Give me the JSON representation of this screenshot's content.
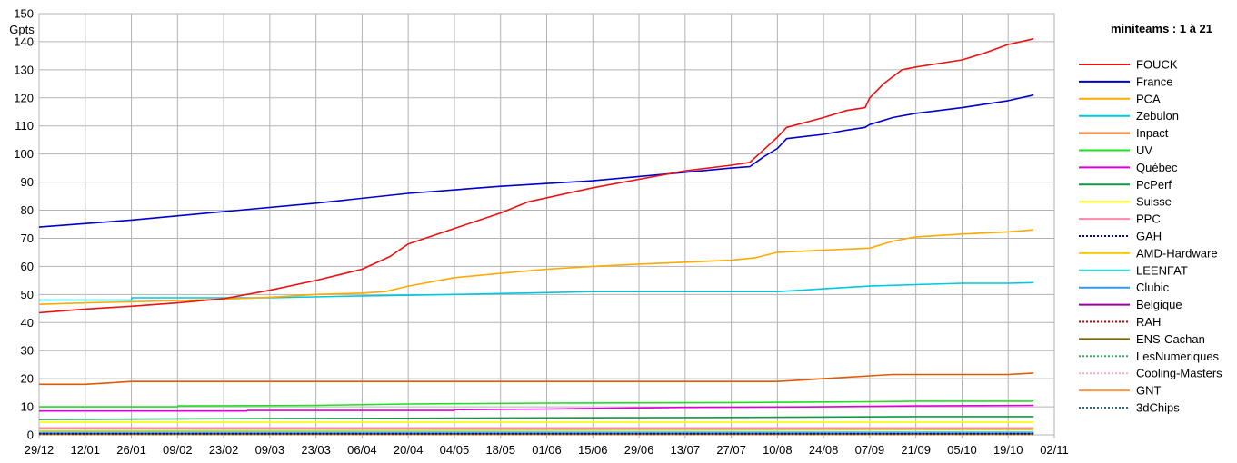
{
  "chart_data": {
    "type": "line",
    "title": "",
    "xlabel": "",
    "ylabel": "Gpts",
    "ylim": [
      0,
      150
    ],
    "ytick_step": 10,
    "grid": true,
    "legend_title": "miniteams : 1 à 21",
    "legend_position": "right",
    "x_dates": [
      "29/12",
      "12/01",
      "26/01",
      "09/02",
      "23/02",
      "09/03",
      "23/03",
      "06/04",
      "20/04",
      "04/05",
      "18/05",
      "01/06",
      "15/06",
      "29/06",
      "13/07",
      "27/07",
      "10/08",
      "24/08",
      "07/09",
      "21/09",
      "05/10",
      "19/10",
      "02/11"
    ],
    "x_data_end": 21.55,
    "series": [
      {
        "name": "FOUCK",
        "color": "#ee1111",
        "dash": "solid",
        "points": [
          [
            0,
            43.5
          ],
          [
            1,
            44.8
          ],
          [
            2,
            45.8
          ],
          [
            3,
            47.0
          ],
          [
            4,
            48.5
          ],
          [
            5,
            51.5
          ],
          [
            6,
            55.0
          ],
          [
            7,
            59.0
          ],
          [
            7.6,
            63.5
          ],
          [
            8,
            68.0
          ],
          [
            9,
            73.5
          ],
          [
            10,
            79.0
          ],
          [
            10.6,
            83.0
          ],
          [
            12,
            88.0
          ],
          [
            13,
            91.0
          ],
          [
            14,
            94.0
          ],
          [
            15,
            96.0
          ],
          [
            15.4,
            97.0
          ],
          [
            15.6,
            100.0
          ],
          [
            16,
            106.0
          ],
          [
            16.2,
            109.5
          ],
          [
            17,
            113.0
          ],
          [
            17.5,
            115.5
          ],
          [
            17.9,
            116.5
          ],
          [
            18,
            120.0
          ],
          [
            18.3,
            125.0
          ],
          [
            18.7,
            130.0
          ],
          [
            19,
            131.0
          ],
          [
            20,
            133.5
          ],
          [
            20.5,
            136.0
          ],
          [
            21,
            139.0
          ],
          [
            21.55,
            141.0
          ]
        ]
      },
      {
        "name": "France",
        "color": "#0000cc",
        "dash": "solid",
        "points": [
          [
            0,
            74.0
          ],
          [
            2,
            76.5
          ],
          [
            4,
            79.5
          ],
          [
            6,
            82.5
          ],
          [
            8,
            86.0
          ],
          [
            10,
            88.5
          ],
          [
            12,
            90.5
          ],
          [
            14,
            93.5
          ],
          [
            15,
            95.0
          ],
          [
            15.4,
            95.5
          ],
          [
            15.7,
            99.0
          ],
          [
            16,
            102.0
          ],
          [
            16.2,
            105.5
          ],
          [
            17,
            107.0
          ],
          [
            17.5,
            108.5
          ],
          [
            17.9,
            109.5
          ],
          [
            18,
            110.5
          ],
          [
            18.5,
            113.0
          ],
          [
            19,
            114.5
          ],
          [
            20,
            116.5
          ],
          [
            21,
            119.0
          ],
          [
            21.55,
            121.0
          ]
        ]
      },
      {
        "name": "PCA",
        "color": "#ffaa00",
        "dash": "solid",
        "points": [
          [
            0,
            46.5
          ],
          [
            1,
            47.0
          ],
          [
            3,
            47.8
          ],
          [
            4,
            48.3
          ],
          [
            5,
            49.0
          ],
          [
            6,
            50.0
          ],
          [
            7,
            50.5
          ],
          [
            7.5,
            51.0
          ],
          [
            8,
            53.0
          ],
          [
            9,
            56.0
          ],
          [
            10,
            57.5
          ],
          [
            11,
            59.0
          ],
          [
            12,
            60.0
          ],
          [
            13,
            60.8
          ],
          [
            14,
            61.5
          ],
          [
            15,
            62.2
          ],
          [
            15.5,
            63.0
          ],
          [
            16,
            65.0
          ],
          [
            17,
            65.8
          ],
          [
            18,
            66.5
          ],
          [
            18.5,
            69.0
          ],
          [
            19,
            70.5
          ],
          [
            20,
            71.5
          ],
          [
            21,
            72.3
          ],
          [
            21.55,
            73.0
          ]
        ]
      },
      {
        "name": "Zebulon",
        "color": "#00c8e0",
        "dash": "solid",
        "points": [
          [
            0,
            48.0
          ],
          [
            2,
            48.0
          ],
          [
            2.01,
            48.8
          ],
          [
            5,
            48.8
          ],
          [
            7,
            49.5
          ],
          [
            9,
            50.0
          ],
          [
            10.5,
            50.5
          ],
          [
            12,
            51.0
          ],
          [
            16,
            51.0
          ],
          [
            16.5,
            51.5
          ],
          [
            17,
            52.0
          ],
          [
            18,
            53.0
          ],
          [
            19,
            53.5
          ],
          [
            20,
            54.0
          ],
          [
            21,
            54.0
          ],
          [
            21.55,
            54.2
          ]
        ]
      },
      {
        "name": "Inpact",
        "color": "#e05a00",
        "dash": "solid",
        "points": [
          [
            0,
            18.0
          ],
          [
            1,
            18.0
          ],
          [
            1.5,
            18.5
          ],
          [
            2,
            19.0
          ],
          [
            16,
            19.0
          ],
          [
            16.5,
            19.5
          ],
          [
            17,
            20.0
          ],
          [
            18,
            21.0
          ],
          [
            18.5,
            21.5
          ],
          [
            21,
            21.5
          ],
          [
            21.55,
            22.0
          ]
        ]
      },
      {
        "name": "UV",
        "color": "#22dd22",
        "dash": "solid",
        "points": [
          [
            0,
            10.0
          ],
          [
            3,
            10.0
          ],
          [
            3.01,
            10.3
          ],
          [
            6,
            10.5
          ],
          [
            8,
            11.0
          ],
          [
            11,
            11.3
          ],
          [
            15,
            11.5
          ],
          [
            18,
            11.8
          ],
          [
            19,
            12.0
          ],
          [
            21.55,
            12.0
          ]
        ]
      },
      {
        "name": "Québec",
        "color": "#dd00dd",
        "dash": "solid",
        "points": [
          [
            0,
            8.5
          ],
          [
            4.5,
            8.5
          ],
          [
            4.51,
            8.7
          ],
          [
            9,
            8.7
          ],
          [
            9.01,
            9.0
          ],
          [
            11,
            9.2
          ],
          [
            14,
            9.8
          ],
          [
            17,
            10.0
          ],
          [
            19,
            10.3
          ],
          [
            21.55,
            10.5
          ]
        ]
      },
      {
        "name": "PcPerf",
        "color": "#119944",
        "dash": "solid",
        "points": [
          [
            0,
            5.5
          ],
          [
            5,
            5.8
          ],
          [
            10,
            6.0
          ],
          [
            15,
            6.2
          ],
          [
            19,
            6.5
          ],
          [
            21.55,
            6.5
          ]
        ]
      },
      {
        "name": "Suisse",
        "color": "#ffff00",
        "dash": "solid",
        "points": [
          [
            0,
            4.5
          ],
          [
            21.55,
            4.5
          ]
        ]
      },
      {
        "name": "PPC",
        "color": "#ff88aa",
        "dash": "solid",
        "points": [
          [
            0,
            2.5
          ],
          [
            21.55,
            2.5
          ]
        ]
      },
      {
        "name": "GAH",
        "color": "#0000cc",
        "dash": "dotted",
        "points": [
          [
            0,
            0.5
          ],
          [
            21.55,
            0.5
          ]
        ]
      },
      {
        "name": "AMD-Hardware",
        "color": "#ffcc00",
        "dash": "solid",
        "points": [
          [
            0,
            1.5
          ],
          [
            21.55,
            1.8
          ]
        ]
      },
      {
        "name": "LEENFAT",
        "color": "#33dddd",
        "dash": "solid",
        "points": [
          [
            0,
            1.0
          ],
          [
            21.55,
            1.0
          ]
        ]
      },
      {
        "name": "Clubic",
        "color": "#3399ee",
        "dash": "solid",
        "points": [
          [
            0,
            0.8
          ],
          [
            21.55,
            0.8
          ]
        ]
      },
      {
        "name": "Belgique",
        "color": "#990099",
        "dash": "solid",
        "points": [
          [
            0,
            0.6
          ],
          [
            21.55,
            0.6
          ]
        ]
      },
      {
        "name": "RAH",
        "color": "#dd0000",
        "dash": "dotted",
        "points": [
          [
            0,
            0.4
          ],
          [
            21.55,
            0.4
          ]
        ]
      },
      {
        "name": "ENS-Cachan",
        "color": "#776600",
        "dash": "solid",
        "points": [
          [
            0,
            0.3
          ],
          [
            21.55,
            0.3
          ]
        ]
      },
      {
        "name": "LesNumeriques",
        "color": "#33aa66",
        "dash": "dotted",
        "points": [
          [
            0,
            0.2
          ],
          [
            21.55,
            0.2
          ]
        ]
      },
      {
        "name": "Cooling-Masters",
        "color": "#ffaacc",
        "dash": "dotted",
        "points": [
          [
            0,
            0.15
          ],
          [
            21.55,
            0.15
          ]
        ]
      },
      {
        "name": "GNT",
        "color": "#ff9944",
        "dash": "solid",
        "points": [
          [
            0,
            0.1
          ],
          [
            21.55,
            0.1
          ]
        ]
      },
      {
        "name": "3dChips",
        "color": "#336688",
        "dash": "dotted",
        "points": [
          [
            0,
            0.05
          ],
          [
            21.55,
            0.05
          ]
        ]
      }
    ]
  }
}
